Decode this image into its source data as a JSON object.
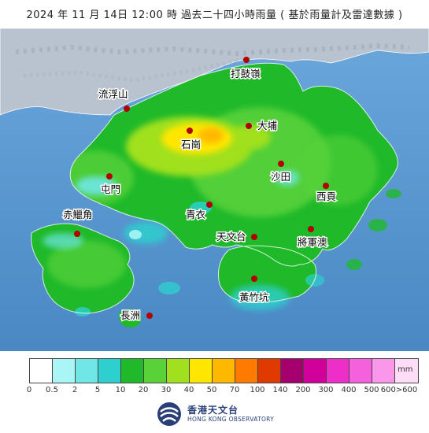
{
  "title": "2024 年 11 月 14日 12:00 時 過去二十四小時雨量 ( 基於雨量計及雷達數據 )",
  "places": [
    {
      "name": "打鼓嶺"
    },
    {
      "name": "流浮山"
    },
    {
      "name": "大埔"
    },
    {
      "name": "石崗"
    },
    {
      "name": "屯門"
    },
    {
      "name": "沙田"
    },
    {
      "name": "西貢"
    },
    {
      "name": "青衣"
    },
    {
      "name": "赤鱲角"
    },
    {
      "name": "天文台"
    },
    {
      "name": "將軍澳"
    },
    {
      "name": "黃竹坑"
    },
    {
      "name": "長洲"
    }
  ],
  "legend": {
    "unit": "mm",
    "ticks": [
      "0",
      "0.5",
      "2",
      "5",
      "10",
      "20",
      "30",
      "40",
      "50",
      "70",
      "100",
      "140",
      "200",
      "300",
      "400",
      "500",
      "600>600"
    ],
    "colors": [
      "#ffffff",
      "#aaf5f5",
      "#70e6e6",
      "#2ecfcf",
      "#1fb92a",
      "#59d23a",
      "#a0e01e",
      "#ffe600",
      "#ffb800",
      "#ff7a00",
      "#e03a00",
      "#a5006e",
      "#d1009a",
      "#ee2ec8",
      "#f561dc",
      "#fa97ea",
      "#fddcf7"
    ]
  },
  "colors": {
    "sea": "#5b9ad3",
    "land_china": "#b9c3cf",
    "rain_10_20": "#1fb92a",
    "rain_20_30": "#59d23a",
    "rain_30_40": "#a0e01e",
    "rain_40_50": "#ffe600",
    "rain_50_70": "#ffb800",
    "rain_5_10": "#2ecfcf",
    "station_marker": "#b00000"
  },
  "logo": {
    "name_cn": "香港天文台",
    "name_en": "HONG KONG OBSERVATORY",
    "icon": "hko-logo-icon"
  }
}
